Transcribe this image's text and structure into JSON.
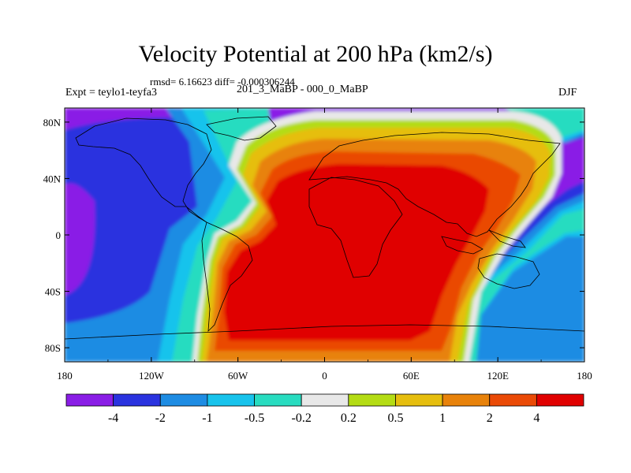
{
  "chart_data": {
    "type": "heatmap",
    "title": "Velocity Potential at 200 hPa (km2/s)",
    "stats_text": "rmsd= 6.16623 diff= -0.000306244",
    "left_label": "Expt = teylo1-teyfa3",
    "subtitle": "201_3_MaBP - 000_0_MaBP",
    "right_label": "DJF",
    "x_ticks": [
      {
        "value": -180,
        "label": "180"
      },
      {
        "value": -120,
        "label": "120W"
      },
      {
        "value": -60,
        "label": "60W"
      },
      {
        "value": 0,
        "label": "0"
      },
      {
        "value": 60,
        "label": "60E"
      },
      {
        "value": 120,
        "label": "120E"
      },
      {
        "value": 180,
        "label": "180"
      }
    ],
    "y_ticks": [
      {
        "value": 80,
        "label": "80N"
      },
      {
        "value": 40,
        "label": "40N"
      },
      {
        "value": 0,
        "label": "0"
      },
      {
        "value": -40,
        "label": "40S"
      },
      {
        "value": -80,
        "label": "80S"
      }
    ],
    "xlim": [
      -180,
      180
    ],
    "ylim": [
      -90,
      90
    ],
    "colorbar": {
      "levels": [
        "-4",
        "-2",
        "-1",
        "-0.5",
        "-0.2",
        "0.2",
        "0.5",
        "1",
        "2",
        "4"
      ],
      "colors": [
        "#8a1ee6",
        "#2a33df",
        "#1e8ce3",
        "#18c3ec",
        "#28dcc0",
        "#e8e8e8",
        "#b4dc14",
        "#e6be0e",
        "#e8820a",
        "#ea4a06",
        "#e00000"
      ],
      "placement": "bottom"
    },
    "field_description_levels": "positive center over Africa/Atlantic/Europe, negative over Pacific"
  }
}
